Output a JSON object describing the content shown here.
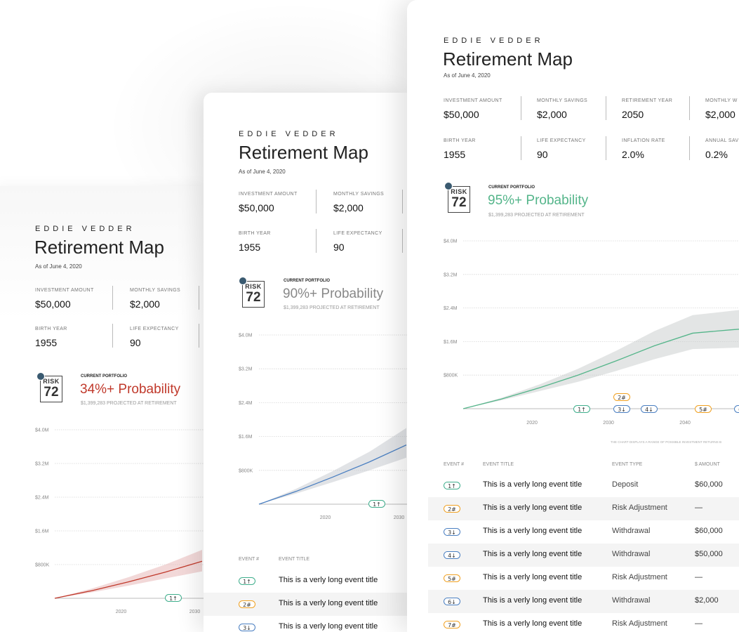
{
  "colors": {
    "teal": "#3fae8c",
    "orange": "#f0a020",
    "blue": "#4a7fc1",
    "red": "#c0392b",
    "green": "#54b58a",
    "redtext": "#c0392b",
    "grey": "#888888"
  },
  "cards": [
    {
      "name": "EDDIE VEDDER",
      "title": "Retirement Map",
      "as_of": "As of June 4, 2020",
      "stats": [
        {
          "label": "INVESTMENT AMOUNT",
          "value": "$50,000"
        },
        {
          "label": "MONTHLY SAVINGS",
          "value": "$2,000"
        },
        {
          "label": "BIRTH YEAR",
          "value": "1955"
        },
        {
          "label": "LIFE EXPECTANCY",
          "value": "90"
        }
      ],
      "risk_word": "RISK",
      "risk_score": "72",
      "current_portfolio": "CURRENT PORTFOLIO",
      "probability": "34%+ Probability",
      "projected": "$1,399,283 PROJECTED AT RETIREMENT",
      "y_ticks": [
        "$4.0M",
        "$3.2M",
        "$2.4M",
        "$1.6M",
        "$800K"
      ],
      "x_ticks": [
        "2020",
        "2030"
      ],
      "events": [
        {
          "label": "1↑",
          "color": "teal"
        }
      ],
      "chart_data": {
        "type": "area",
        "title": "",
        "xlabel": "",
        "ylabel": "",
        "ylim": [
          0,
          4000000
        ],
        "x": [
          2011,
          2016,
          2021,
          2026,
          2031
        ],
        "series": [
          {
            "values": [
              0,
              180000,
              390000,
              620000,
              880000
            ]
          }
        ],
        "band_low": [
          0,
          140000,
          300000,
          470000,
          640000
        ],
        "band_high": [
          0,
          230000,
          500000,
          800000,
          1150000
        ],
        "x_ticks": [
          "2020",
          "2030"
        ],
        "grid": true,
        "legend": "none"
      }
    },
    {
      "name": "EDDIE VEDDER",
      "title": "Retirement Map",
      "as_of": "As of June 4, 2020",
      "stats": [
        {
          "label": "INVESTMENT AMOUNT",
          "value": "$50,000"
        },
        {
          "label": "MONTHLY SAVINGS",
          "value": "$2,000"
        },
        {
          "label": "BIRTH YEAR",
          "value": "1955"
        },
        {
          "label": "LIFE EXPECTANCY",
          "value": "90"
        }
      ],
      "risk_word": "RISK",
      "risk_score": "72",
      "current_portfolio": "CURRENT PORTFOLIO",
      "probability": "90%+ Probability",
      "projected": "$1,399,283 PROJECTED AT RETIREMENT",
      "y_ticks": [
        "$4.0M",
        "$3.2M",
        "$2.4M",
        "$1.6M",
        "$800K"
      ],
      "x_ticks": [
        "2020",
        "2030"
      ],
      "events": [
        {
          "label": "1↑",
          "color": "teal"
        }
      ],
      "table": {
        "headers": [
          "EVENT #",
          "EVENT TITLE"
        ],
        "rows": [
          {
            "num": "1↑",
            "color": "teal",
            "title": "This is a verly long event title"
          },
          {
            "num": "2#",
            "color": "orange",
            "title": "This is a verly long event title"
          },
          {
            "num": "3↓",
            "color": "blue",
            "title": "This is a verly long event title"
          }
        ]
      },
      "chart_data": {
        "type": "area",
        "title": "",
        "xlabel": "",
        "ylabel": "",
        "ylim": [
          0,
          4000000
        ],
        "x": [
          2011,
          2016,
          2021,
          2026,
          2031
        ],
        "series": [
          {
            "values": [
              0,
              300000,
              640000,
              1000000,
              1400000
            ]
          }
        ],
        "band_low": [
          0,
          250000,
          520000,
          800000,
          1100000
        ],
        "band_high": [
          0,
          360000,
          780000,
          1240000,
          1800000
        ],
        "x_ticks": [
          "2020",
          "2030"
        ],
        "grid": true,
        "legend": "none"
      }
    },
    {
      "name": "EDDIE VEDDER",
      "title": "Retirement Map",
      "as_of": "As of June 4, 2020",
      "stats": [
        {
          "label": "INVESTMENT AMOUNT",
          "value": "$50,000"
        },
        {
          "label": "MONTHLY SAVINGS",
          "value": "$2,000"
        },
        {
          "label": "RETIREMENT YEAR",
          "value": "2050"
        },
        {
          "label": "MONTHLY W",
          "value": "$2,000"
        },
        {
          "label": "BIRTH YEAR",
          "value": "1955"
        },
        {
          "label": "LIFE EXPECTANCY",
          "value": "90"
        },
        {
          "label": "INFLATION RATE",
          "value": "2.0%"
        },
        {
          "label": "ANNUAL SAV",
          "value": "0.2%"
        }
      ],
      "risk_word": "RISK",
      "risk_score": "72",
      "current_portfolio": "CURRENT PORTFOLIO",
      "probability": "95%+ Probability",
      "projected": "$1,399,283 PROJECTED AT RETIREMENT",
      "y_ticks": [
        "$4.0M",
        "$3.2M",
        "$2.4M",
        "$1.6M",
        "$800K"
      ],
      "x_ticks": [
        "2020",
        "2030",
        "2040"
      ],
      "chart_note": "THE CHART DISPLAYS A RANGE OF POSSIBLE INVESTMENT RETURNS B",
      "events": [
        {
          "label": "1↑",
          "color": "teal"
        },
        {
          "label": "2#",
          "color": "orange"
        },
        {
          "label": "3↓",
          "color": "blue"
        },
        {
          "label": "4↓",
          "color": "blue"
        },
        {
          "label": "5#",
          "color": "orange"
        },
        {
          "label": "6↓",
          "color": "blue"
        }
      ],
      "table": {
        "headers": [
          "EVENT #",
          "EVENT TITLE",
          "EVENT TYPE",
          "$ AMOUNT"
        ],
        "rows": [
          {
            "num": "1↑",
            "color": "teal",
            "title": "This is a verly long event title",
            "type": "Deposit",
            "amount": "$60,000"
          },
          {
            "num": "2#",
            "color": "orange",
            "title": "This is a verly long event title",
            "type": "Risk Adjustment",
            "amount": "—"
          },
          {
            "num": "3↓",
            "color": "blue",
            "title": "This is a verly long event title",
            "type": "Withdrawal",
            "amount": "$60,000"
          },
          {
            "num": "4↓",
            "color": "blue",
            "title": "This is a verly long event title",
            "type": "Withdrawal",
            "amount": "$50,000"
          },
          {
            "num": "5#",
            "color": "orange",
            "title": "This is a verly long event title",
            "type": "Risk Adjustment",
            "amount": "—"
          },
          {
            "num": "6↓",
            "color": "blue",
            "title": "This is a verly long event title",
            "type": "Withdrawal",
            "amount": "$2,000"
          },
          {
            "num": "7#",
            "color": "orange",
            "title": "This is a verly long event title",
            "type": "Risk Adjustment",
            "amount": "—"
          }
        ]
      },
      "chart_data": {
        "type": "area",
        "title": "",
        "xlabel": "",
        "ylabel": "",
        "ylim": [
          0,
          4000000
        ],
        "x": [
          2011,
          2016,
          2021,
          2026,
          2031,
          2036,
          2041,
          2046,
          2051,
          2053
        ],
        "series": [
          {
            "values": [
              0,
              230000,
              500000,
              800000,
              1140000,
              1500000,
              1800000,
              1880000,
              1950000,
              1980000
            ]
          }
        ],
        "band_low": [
          0,
          200000,
          420000,
          640000,
          900000,
          1180000,
          1420000,
          1450000,
          1480000,
          1500000
        ],
        "band_high": [
          0,
          260000,
          580000,
          950000,
          1380000,
          1850000,
          2230000,
          2330000,
          2430000,
          2480000
        ],
        "x_ticks": [
          "2020",
          "2030",
          "2040"
        ],
        "grid": true,
        "legend": "none"
      }
    }
  ]
}
